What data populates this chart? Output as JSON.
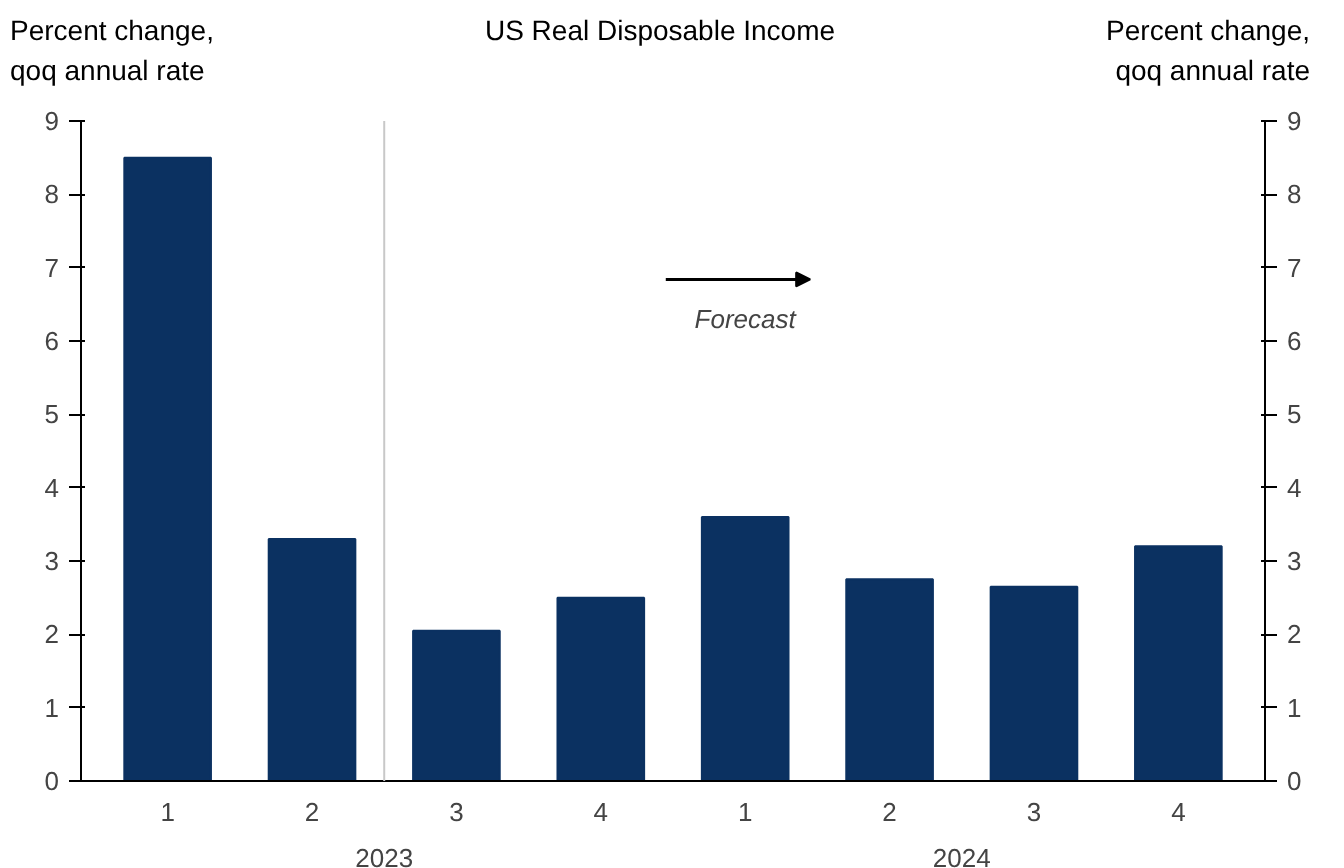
{
  "chart_data": {
    "type": "bar",
    "title": "US Real Disposable Income",
    "ylabel": "Percent change,\nqoq annual rate",
    "y2label": "Percent change,\nqoq annual rate",
    "categories": [
      "1",
      "2",
      "3",
      "4",
      "1",
      "2",
      "3",
      "4"
    ],
    "values": [
      8.5,
      3.3,
      2.05,
      2.5,
      3.6,
      2.75,
      2.65,
      3.2
    ],
    "color": "#0b3161",
    "ylim": [
      0,
      9
    ],
    "yticks": [
      0,
      1,
      2,
      3,
      4,
      5,
      6,
      7,
      8,
      9
    ],
    "y2lim": [
      0,
      9
    ],
    "y2ticks": [
      0,
      1,
      2,
      3,
      4,
      5,
      6,
      7,
      8,
      9
    ],
    "grid": false,
    "annotations": [
      "Forecast",
      "2023",
      "2024"
    ]
  }
}
